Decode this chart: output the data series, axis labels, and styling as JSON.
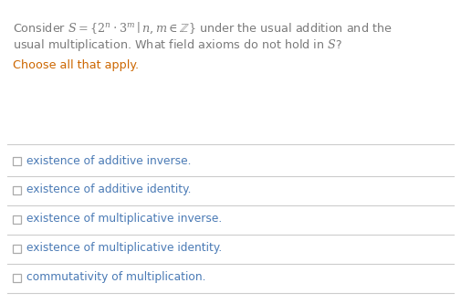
{
  "bg_color": "#ffffff",
  "text_color": "#7a7a7a",
  "choose_color": "#cc6600",
  "option_color": "#4a7ab5",
  "checkbox_color": "#aaaaaa",
  "line_color": "#cccccc",
  "figsize": [
    5.05,
    3.33
  ],
  "dpi": 100,
  "options": [
    "existence of additive inverse.",
    "existence of additive identity.",
    "existence of multiplicative inverse.",
    "existence of multiplicative identity.",
    "commutativity of multiplication."
  ]
}
